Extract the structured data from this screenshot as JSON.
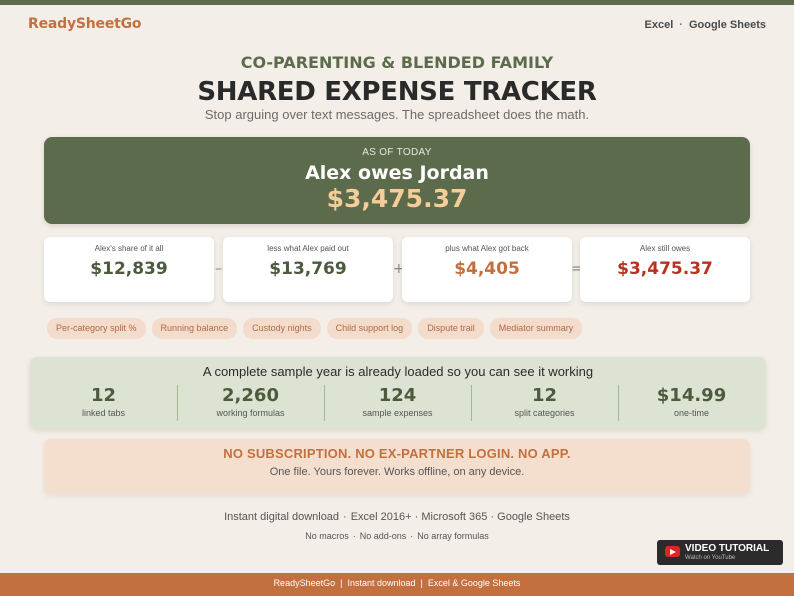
{
  "header": {
    "brand": "ReadySheetGo",
    "platform_a": "Excel",
    "platform_sep": "·",
    "platform_b": "Google Sheets"
  },
  "intro": {
    "eyebrow": "CO-PARENTING & BLENDED FAMILY",
    "title": "SHARED EXPENSE TRACKER",
    "subtitle": "Stop arguing over text messages. The spreadsheet does the math."
  },
  "summary": {
    "as_of": "AS OF TODAY",
    "statement": "Alex owes Jordan",
    "amount": "$3,475.37"
  },
  "breakdown": [
    {
      "label": "Alex's share of it all",
      "value": "$12,839",
      "color": "#4c5a3e"
    },
    {
      "label": "less what Alex paid out",
      "value": "$13,769",
      "color": "#4c5a3e"
    },
    {
      "label": "plus what Alex got back",
      "value": "$4,405",
      "color": "#c4703e"
    },
    {
      "label": "Alex still owes",
      "value": "$3,475.37",
      "color": "#b8321f"
    }
  ],
  "operators": [
    "–",
    "+",
    "="
  ],
  "features": [
    "Per-category split %",
    "Running balance",
    "Custody nights",
    "Child support log",
    "Dispute trail",
    "Mediator summary"
  ],
  "sample": {
    "heading": "A complete sample year is already loaded so you can see it working",
    "stats": [
      {
        "num": "12",
        "label": "linked tabs"
      },
      {
        "num": "2,260",
        "label": "working formulas"
      },
      {
        "num": "124",
        "label": "sample expenses"
      },
      {
        "num": "12",
        "label": "split categories"
      },
      {
        "num": "$14.99",
        "label": "one-time"
      }
    ]
  },
  "no_sub": {
    "heading": "NO SUBSCRIPTION.  NO EX-PARTNER LOGIN.  NO APP.",
    "sub": "One file. Yours forever. Works offline, on any device."
  },
  "compat": {
    "items": [
      "Instant digital download",
      "Excel 2016+ · Microsoft 365 · Google Sheets"
    ],
    "sep": "·"
  },
  "limits": {
    "items": [
      "No macros",
      "No add-ons",
      "No array formulas"
    ],
    "sep": "·"
  },
  "video": {
    "title": "VIDEO TUTORIAL",
    "subtitle": "Watch on YouTube"
  },
  "footer": {
    "items": [
      "ReadySheetGo",
      "Instant download",
      "Excel & Google Sheets"
    ],
    "sep": "|"
  },
  "colors": {
    "green": "#5d6b4d",
    "orange": "#c4703e",
    "peach": "#f4dfcf",
    "sage": "#dce3d3",
    "bg": "#f3efe8"
  }
}
